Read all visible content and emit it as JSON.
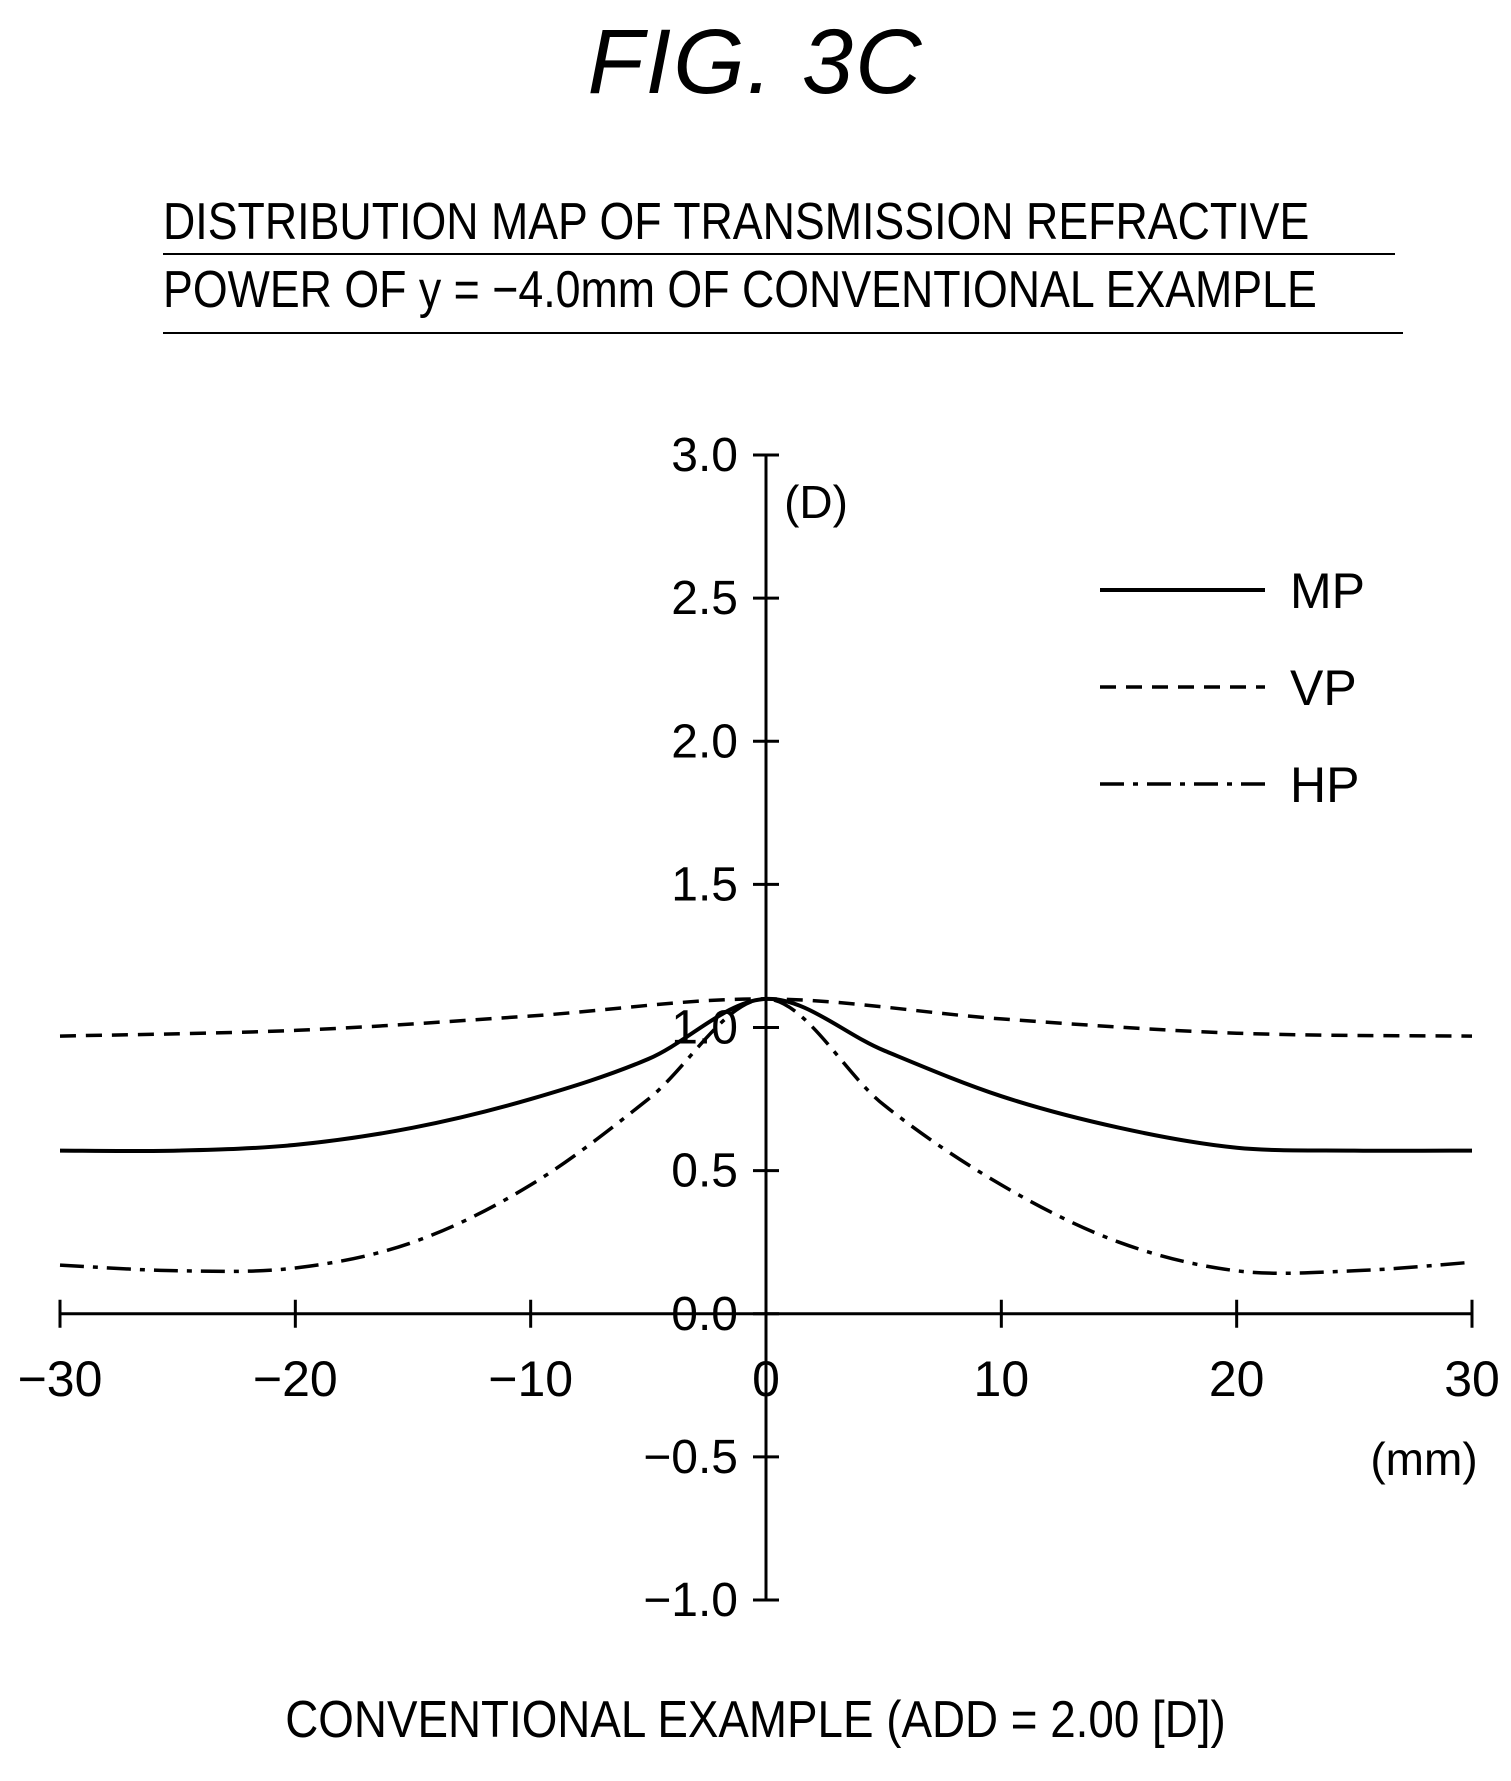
{
  "figure": {
    "label": "FIG. 3C",
    "title_lines": [
      "DISTRIBUTION MAP OF TRANSMISSION REFRACTIVE",
      "POWER OF y = −4.0mm OF CONVENTIONAL EXAMPLE"
    ],
    "caption": "CONVENTIONAL EXAMPLE (ADD = 2.00 [D])"
  },
  "chart_data": {
    "type": "line",
    "title": "DISTRIBUTION MAP OF TRANSMISSION REFRACTIVE POWER OF y = −4.0mm OF CONVENTIONAL EXAMPLE",
    "xlabel": "(mm)",
    "ylabel": "(D)",
    "xlim": [
      -30,
      30
    ],
    "ylim": [
      -1.0,
      3.0
    ],
    "x_ticks": [
      -30,
      -20,
      -10,
      0,
      10,
      20,
      30
    ],
    "x_tick_labels": [
      "−30",
      "−20",
      "−10",
      "0",
      "10",
      "20",
      "30"
    ],
    "y_ticks": [
      3.0,
      2.5,
      2.0,
      1.5,
      1.0,
      0.5,
      0.0,
      -0.5,
      -1.0
    ],
    "y_tick_labels": [
      "3.0",
      "2.5",
      "2.0",
      "1.5",
      "1.0",
      "0.5",
      "0.0",
      "−0.5",
      "−1.0"
    ],
    "grid": false,
    "legend_position": "top-right",
    "series": [
      {
        "name": "MP",
        "style": "solid",
        "color": "#000000",
        "x": [
          -30,
          -25,
          -20,
          -15,
          -10,
          -5,
          0,
          5,
          10,
          15,
          20,
          25,
          30
        ],
        "y": [
          0.57,
          0.57,
          0.59,
          0.65,
          0.75,
          0.89,
          1.1,
          0.92,
          0.76,
          0.65,
          0.58,
          0.57,
          0.57
        ]
      },
      {
        "name": "VP",
        "style": "dashed",
        "color": "#000000",
        "x": [
          -30,
          -20,
          -10,
          0,
          10,
          20,
          30
        ],
        "y": [
          0.97,
          0.99,
          1.04,
          1.1,
          1.03,
          0.98,
          0.97
        ]
      },
      {
        "name": "HP",
        "style": "dash-dot",
        "color": "#000000",
        "x": [
          -30,
          -25,
          -20,
          -15,
          -10,
          -5,
          0,
          5,
          10,
          15,
          20,
          25,
          30
        ],
        "y": [
          0.17,
          0.15,
          0.16,
          0.25,
          0.45,
          0.75,
          1.1,
          0.73,
          0.45,
          0.25,
          0.15,
          0.15,
          0.18
        ]
      }
    ]
  }
}
